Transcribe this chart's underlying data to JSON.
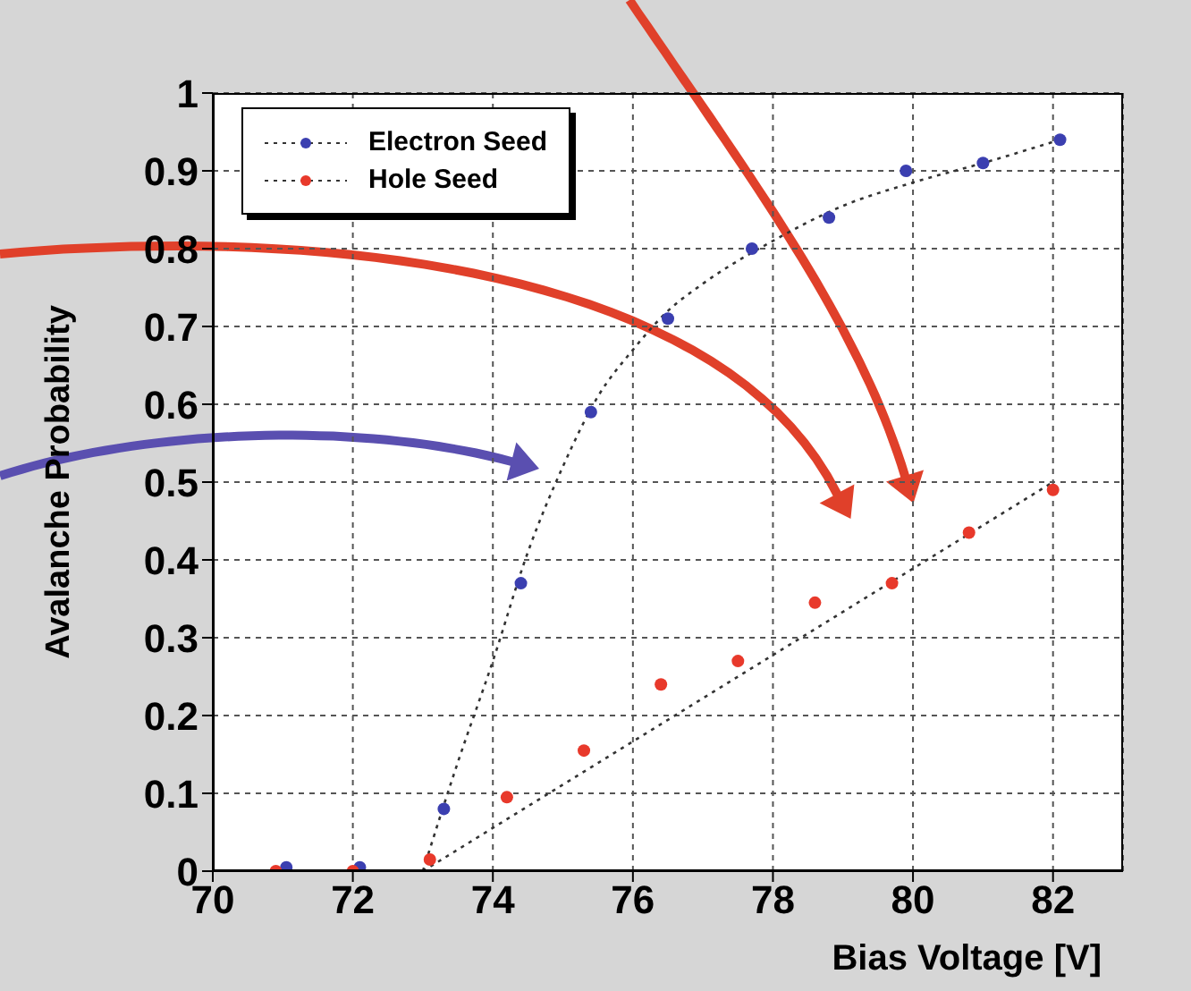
{
  "chart_data": {
    "type": "scatter",
    "xlabel": "Bias Voltage [V]",
    "ylabel": "Avalanche Probability",
    "xlim": [
      70,
      83
    ],
    "xticks": [
      70,
      72,
      74,
      76,
      78,
      80,
      82
    ],
    "ylim": [
      0,
      1
    ],
    "yticks": [
      0,
      0.1,
      0.2,
      0.3,
      0.4,
      0.5,
      0.6,
      0.7,
      0.8,
      0.9,
      1
    ],
    "grid": true,
    "legend": "top left",
    "marker": "circle",
    "series": [
      {
        "name": "Electron Seed",
        "color": "#3b3fb0",
        "x": [
          71.05,
          72.1,
          73.3,
          74.4,
          75.4,
          76.5,
          77.7,
          78.8,
          79.9,
          81.0,
          82.1
        ],
        "values": [
          0.005,
          0.005,
          0.08,
          0.37,
          0.59,
          0.71,
          0.8,
          0.84,
          0.9,
          0.91,
          0.94
        ]
      },
      {
        "name": "Hole Seed",
        "color": "#e8392b",
        "x": [
          70.9,
          72.0,
          73.1,
          74.2,
          75.3,
          76.4,
          77.5,
          78.6,
          79.7,
          80.8,
          82.0
        ],
        "values": [
          0,
          0,
          0.015,
          0.095,
          0.155,
          0.24,
          0.27,
          0.345,
          0.37,
          0.435,
          0.49
        ]
      },
      {
        "type": "line",
        "color": "#333333",
        "line_style": "dotted",
        "marker": "none",
        "x": [
          73.0,
          73.5,
          74.0,
          74.5,
          75.0,
          75.5,
          76.0,
          76.5,
          77.0,
          78.0,
          79.0,
          80.0,
          81.0,
          82.1
        ],
        "values": [
          0,
          0.14,
          0.27,
          0.41,
          0.52,
          0.61,
          0.67,
          0.72,
          0.755,
          0.81,
          0.855,
          0.885,
          0.91,
          0.94
        ]
      },
      {
        "type": "line",
        "color": "#333333",
        "line_style": "dotted",
        "marker": "none",
        "x": [
          73.0,
          82.0
        ],
        "values": [
          0,
          0.5
        ]
      }
    ]
  }
}
